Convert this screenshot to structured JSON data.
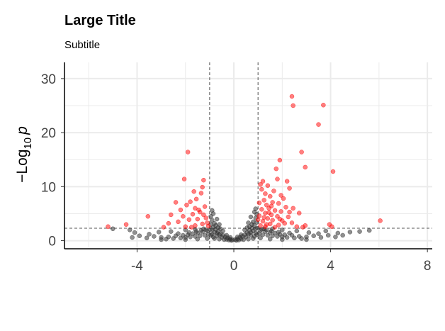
{
  "chart_data": {
    "type": "scatter",
    "title": "Large Title",
    "subtitle": "Subtitle",
    "xlabel": "",
    "ylabel": {
      "main": "−Log",
      "sub": "10",
      "var": "p"
    },
    "xlim": [
      -7,
      8.2
    ],
    "ylim": [
      -1.5,
      33
    ],
    "xticks": [
      -4,
      0,
      4,
      8
    ],
    "xtick_labels": [
      "-4",
      "0",
      "4",
      "8"
    ],
    "yticks": [
      0,
      10,
      20,
      30
    ],
    "ytick_labels": [
      "0",
      "10",
      "20",
      "30"
    ],
    "grid": true,
    "thresholds": {
      "x": [
        -1,
        1
      ],
      "y": 2.3
    },
    "colors": {
      "significant": "#ff0000",
      "nonsignificant": "#333333",
      "grid": "#ebebeb"
    },
    "series": [
      {
        "points": [
          [
            2.4,
            26.7
          ],
          [
            2.45,
            25
          ],
          [
            3.7,
            25.1
          ],
          [
            3.5,
            21.5
          ],
          [
            2.8,
            16.4
          ],
          [
            2.95,
            13.6
          ],
          [
            4.1,
            12.8
          ],
          [
            -1.9,
            16.4
          ],
          [
            -2.05,
            11.4
          ],
          [
            -1.25,
            11.2
          ],
          [
            -1.3,
            9.9
          ],
          [
            -1.35,
            8.8
          ],
          [
            -1.65,
            9.1
          ],
          [
            -2.4,
            7.1
          ],
          [
            -1.8,
            7.2
          ],
          [
            -1.95,
            6.6
          ],
          [
            -2.2,
            5.7
          ],
          [
            -1.6,
            6.0
          ],
          [
            -1.2,
            6.3
          ],
          [
            -1.4,
            5.3
          ],
          [
            -1.7,
            4.9
          ],
          [
            -2.6,
            4.8
          ],
          [
            -3.55,
            4.5
          ],
          [
            -1.15,
            4.2
          ],
          [
            -1.5,
            4.0
          ],
          [
            -1.85,
            3.9
          ],
          [
            -2.3,
            3.5
          ],
          [
            -1.1,
            3.3
          ],
          [
            -1.3,
            3.1
          ],
          [
            -2.7,
            3.2
          ],
          [
            -1.6,
            2.8
          ],
          [
            -2.0,
            2.6
          ],
          [
            -1.05,
            2.7
          ],
          [
            -1.75,
            2.5
          ],
          [
            -4.45,
            3.0
          ],
          [
            -5.2,
            2.6
          ],
          [
            -2.9,
            2.5
          ],
          [
            -1.45,
            5.7
          ],
          [
            -2.1,
            4.5
          ],
          [
            -1.55,
            7.7
          ],
          [
            -1.25,
            4.8
          ],
          [
            1.9,
            14.9
          ],
          [
            1.75,
            13.3
          ],
          [
            1.2,
            11.0
          ],
          [
            1.1,
            10.4
          ],
          [
            1.4,
            10.2
          ],
          [
            2.2,
            11.0
          ],
          [
            1.8,
            11.4
          ],
          [
            1.65,
            9.2
          ],
          [
            2.3,
            9.7
          ],
          [
            1.3,
            8.7
          ],
          [
            1.5,
            8.2
          ],
          [
            1.95,
            8.4
          ],
          [
            1.15,
            9.5
          ],
          [
            2.05,
            7.8
          ],
          [
            1.25,
            7.5
          ],
          [
            1.6,
            7.1
          ],
          [
            1.85,
            6.9
          ],
          [
            1.35,
            6.6
          ],
          [
            1.05,
            7.0
          ],
          [
            2.15,
            6.2
          ],
          [
            2.45,
            6.0
          ],
          [
            1.45,
            6.0
          ],
          [
            1.7,
            5.6
          ],
          [
            1.95,
            5.4
          ],
          [
            1.15,
            5.8
          ],
          [
            1.3,
            5.1
          ],
          [
            1.55,
            4.8
          ],
          [
            1.05,
            4.6
          ],
          [
            1.8,
            4.5
          ],
          [
            2.25,
            4.4
          ],
          [
            1.4,
            4.1
          ],
          [
            1.6,
            3.8
          ],
          [
            2.0,
            3.7
          ],
          [
            1.2,
            3.6
          ],
          [
            2.4,
            3.3
          ],
          [
            1.5,
            3.1
          ],
          [
            1.85,
            2.9
          ],
          [
            1.1,
            2.8
          ],
          [
            2.6,
            2.6
          ],
          [
            1.7,
            2.5
          ],
          [
            2.85,
            2.5
          ],
          [
            1.3,
            2.6
          ],
          [
            2.7,
            5.1
          ],
          [
            2.95,
            2.8
          ],
          [
            1.9,
            4.0
          ],
          [
            2.3,
            5.3
          ],
          [
            1.55,
            6.4
          ],
          [
            1.25,
            4.3
          ],
          [
            2.1,
            3.2
          ],
          [
            3.95,
            3.0
          ],
          [
            4.05,
            2.6
          ],
          [
            6.05,
            3.7
          ],
          [
            1.35,
            3.0
          ],
          [
            1.0,
            3.9
          ],
          [
            1.45,
            5.2
          ]
        ],
        "color": "#ff0000",
        "opacity": 0.5
      },
      {
        "points": [
          [
            -0.05,
            0.15
          ],
          [
            0.05,
            0.2
          ],
          [
            -0.15,
            0.3
          ],
          [
            0.15,
            0.35
          ],
          [
            -0.25,
            0.5
          ],
          [
            0.25,
            0.6
          ],
          [
            -0.35,
            0.7
          ],
          [
            0.35,
            0.8
          ],
          [
            -0.45,
            1.0
          ],
          [
            0.45,
            1.1
          ],
          [
            -0.55,
            1.3
          ],
          [
            0.55,
            1.5
          ],
          [
            -0.65,
            1.7
          ],
          [
            0.65,
            1.9
          ],
          [
            -0.75,
            2.1
          ],
          [
            0.75,
            2.3
          ],
          [
            -0.85,
            2.5
          ],
          [
            0.85,
            2.8
          ],
          [
            -0.95,
            3.0
          ],
          [
            0.95,
            3.4
          ],
          [
            -0.2,
            0.1
          ],
          [
            0.2,
            0.1
          ],
          [
            -0.4,
            0.2
          ],
          [
            0.4,
            0.2
          ],
          [
            -0.6,
            0.3
          ],
          [
            0.6,
            0.3
          ],
          [
            -0.8,
            0.4
          ],
          [
            0.8,
            0.4
          ],
          [
            -0.5,
            0.6
          ],
          [
            0.5,
            0.7
          ],
          [
            -0.7,
            0.9
          ],
          [
            0.7,
            1.0
          ],
          [
            -0.9,
            1.2
          ],
          [
            0.9,
            1.4
          ],
          [
            -0.3,
            0.25
          ],
          [
            0.3,
            0.3
          ],
          [
            -0.6,
            1.1
          ],
          [
            0.6,
            1.2
          ],
          [
            -0.8,
            1.6
          ],
          [
            0.8,
            1.8
          ],
          [
            -0.9,
            2.0
          ],
          [
            0.9,
            2.2
          ],
          [
            -0.7,
            1.4
          ],
          [
            0.7,
            1.5
          ],
          [
            -0.95,
            1.0
          ],
          [
            0.95,
            1.1
          ],
          [
            -0.85,
            0.7
          ],
          [
            0.85,
            0.8
          ],
          [
            -1.05,
            1.2
          ],
          [
            -1.2,
            1.0
          ],
          [
            -1.4,
            0.9
          ],
          [
            -1.6,
            0.8
          ],
          [
            -1.8,
            0.7
          ],
          [
            -2.0,
            0.6
          ],
          [
            -2.2,
            0.5
          ],
          [
            -2.5,
            0.4
          ],
          [
            -2.8,
            0.3
          ],
          [
            -1.1,
            1.8
          ],
          [
            -1.3,
            1.6
          ],
          [
            -1.5,
            1.4
          ],
          [
            -1.7,
            1.3
          ],
          [
            -1.9,
            1.1
          ],
          [
            -2.1,
            1.0
          ],
          [
            -2.4,
            0.9
          ],
          [
            -2.7,
            0.7
          ],
          [
            -3.0,
            0.6
          ],
          [
            -1.15,
            2.0
          ],
          [
            -1.35,
            1.9
          ],
          [
            -1.55,
            1.7
          ],
          [
            -1.85,
            1.5
          ],
          [
            -2.3,
            1.3
          ],
          [
            -3.3,
            0.8
          ],
          [
            -3.6,
            0.5
          ],
          [
            -3.9,
            0.9
          ],
          [
            -3.5,
            1.2
          ],
          [
            -4.2,
            0.6
          ],
          [
            -4.1,
            1.5
          ],
          [
            -4.3,
            2.0
          ],
          [
            -5.0,
            2.2
          ],
          [
            -2.6,
            1.7
          ],
          [
            -2.0,
            2.0
          ],
          [
            -1.6,
            2.1
          ],
          [
            -1.25,
            2.2
          ],
          [
            -3.1,
            1.6
          ],
          [
            1.05,
            1.3
          ],
          [
            1.2,
            1.1
          ],
          [
            1.4,
            1.0
          ],
          [
            1.6,
            0.9
          ],
          [
            1.8,
            0.8
          ],
          [
            2.0,
            0.7
          ],
          [
            2.2,
            0.6
          ],
          [
            2.5,
            0.5
          ],
          [
            2.8,
            0.4
          ],
          [
            1.1,
            1.9
          ],
          [
            1.3,
            1.7
          ],
          [
            1.5,
            1.5
          ],
          [
            1.7,
            1.4
          ],
          [
            1.9,
            1.2
          ],
          [
            2.1,
            1.1
          ],
          [
            2.4,
            1.0
          ],
          [
            2.7,
            0.8
          ],
          [
            3.0,
            0.7
          ],
          [
            1.15,
            2.1
          ],
          [
            1.35,
            2.0
          ],
          [
            1.55,
            1.8
          ],
          [
            1.85,
            1.6
          ],
          [
            2.3,
            1.4
          ],
          [
            3.3,
            0.9
          ],
          [
            3.6,
            0.6
          ],
          [
            3.9,
            1.0
          ],
          [
            3.5,
            1.3
          ],
          [
            4.2,
            0.7
          ],
          [
            4.5,
            1.0
          ],
          [
            4.8,
            1.6
          ],
          [
            5.2,
            1.7
          ],
          [
            5.6,
            1.9
          ],
          [
            2.6,
            1.8
          ],
          [
            2.0,
            2.0
          ],
          [
            1.6,
            2.2
          ],
          [
            1.25,
            2.2
          ],
          [
            3.1,
            1.5
          ],
          [
            3.8,
            1.8
          ],
          [
            4.3,
            1.4
          ],
          [
            -0.45,
            1.8
          ],
          [
            0.45,
            2.0
          ],
          [
            -0.65,
            2.4
          ],
          [
            0.65,
            2.6
          ],
          [
            -0.8,
            3.2
          ],
          [
            0.8,
            3.5
          ],
          [
            -0.9,
            3.8
          ],
          [
            0.9,
            4.2
          ],
          [
            -0.95,
            4.5
          ],
          [
            0.95,
            4.9
          ],
          [
            -0.7,
            4.0
          ],
          [
            0.7,
            4.4
          ],
          [
            -0.85,
            5.0
          ],
          [
            0.85,
            5.3
          ],
          [
            -0.9,
            5.6
          ],
          [
            0.9,
            5.9
          ],
          [
            -0.6,
            3.0
          ],
          [
            0.6,
            3.3
          ],
          [
            -0.55,
            2.2
          ],
          [
            0.55,
            2.4
          ],
          [
            -0.98,
            2.1
          ],
          [
            0.98,
            2.3
          ],
          [
            -0.75,
            2.8
          ],
          [
            0.75,
            3.0
          ],
          [
            -0.3,
            1.0
          ],
          [
            0.3,
            1.1
          ],
          [
            -0.15,
            0.6
          ],
          [
            0.15,
            0.7
          ],
          [
            -1.1,
            0.4
          ],
          [
            1.1,
            0.5
          ],
          [
            -1.5,
            0.3
          ],
          [
            1.5,
            0.3
          ],
          [
            -2.0,
            0.2
          ],
          [
            2.0,
            0.2
          ],
          [
            -3.0,
            0.2
          ],
          [
            3.0,
            0.2
          ],
          [
            -0.1,
            0.05
          ],
          [
            0.1,
            0.05
          ]
        ],
        "color": "#333333",
        "opacity": 0.55
      }
    ]
  }
}
